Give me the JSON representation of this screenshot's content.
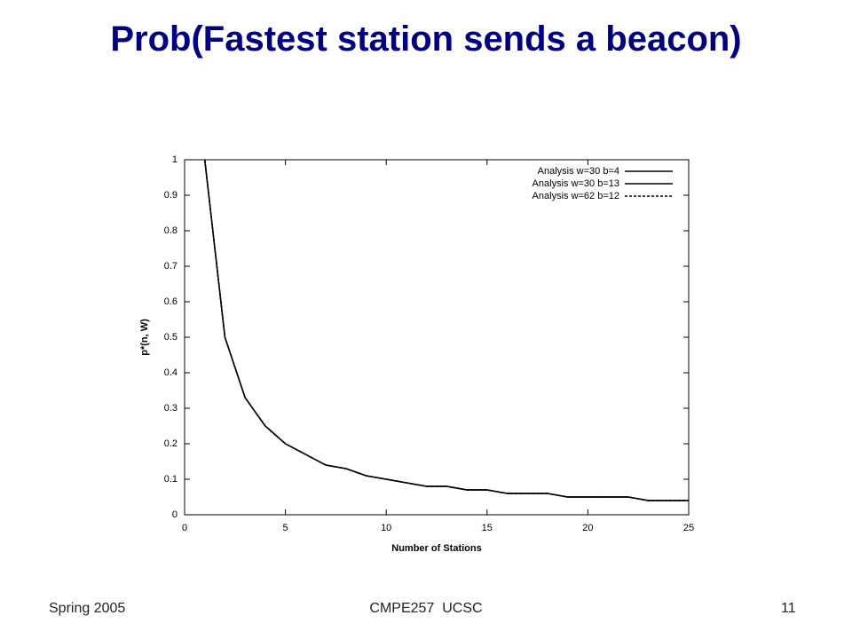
{
  "chart_data": {
    "type": "line",
    "title": "Prob(Fastest station sends a beacon)",
    "xlabel": "Number of Stations",
    "ylabel": "p*(n, W)",
    "x": [
      1,
      2,
      3,
      4,
      5,
      6,
      7,
      8,
      9,
      10,
      11,
      12,
      13,
      14,
      15,
      16,
      17,
      18,
      19,
      20,
      21,
      22,
      23,
      24,
      25
    ],
    "series": [
      {
        "name": "Analysis w=30 b=4",
        "color": "#000000",
        "style": "solid",
        "values": [
          1,
          0.5,
          0.33,
          0.25,
          0.2,
          0.17,
          0.14,
          0.13,
          0.11,
          0.1,
          0.09,
          0.08,
          0.08,
          0.07,
          0.07,
          0.06,
          0.06,
          0.06,
          0.05,
          0.05,
          0.05,
          0.05,
          0.04,
          0.04,
          0.04
        ]
      },
      {
        "name": "Analysis w=30 b=13",
        "color": "#000000",
        "style": "solid",
        "values": [
          1,
          0.5,
          0.33,
          0.25,
          0.2,
          0.17,
          0.14,
          0.13,
          0.11,
          0.1,
          0.09,
          0.08,
          0.08,
          0.07,
          0.07,
          0.06,
          0.06,
          0.06,
          0.05,
          0.05,
          0.05,
          0.05,
          0.04,
          0.04,
          0.04
        ]
      },
      {
        "name": "Analysis w=62 b=12",
        "color": "#000000",
        "style": "dashed",
        "values": [
          1,
          0.5,
          0.33,
          0.25,
          0.2,
          0.17,
          0.14,
          0.13,
          0.11,
          0.1,
          0.09,
          0.08,
          0.08,
          0.07,
          0.07,
          0.06,
          0.06,
          0.06,
          0.05,
          0.05,
          0.05,
          0.05,
          0.04,
          0.04,
          0.04
        ]
      }
    ],
    "xlim": [
      0,
      25
    ],
    "xticks": [
      0,
      5,
      10,
      15,
      20,
      25
    ],
    "ylim": [
      0,
      1
    ],
    "yticks": [
      0,
      0.1,
      0.2,
      0.3,
      0.4,
      0.5,
      0.6,
      0.7,
      0.8,
      0.9,
      1
    ],
    "grid": false,
    "legend": "top-right"
  },
  "footer": {
    "left": "Spring 2005",
    "center": "CMPE257  UCSC",
    "page_number": "11"
  }
}
